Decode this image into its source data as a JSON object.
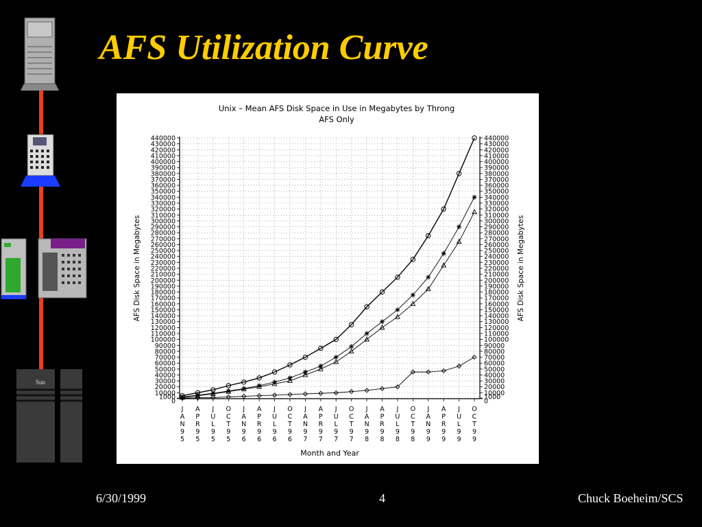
{
  "slide": {
    "title": "AFS Utilization Curve",
    "footer_date": "6/30/1999",
    "footer_page": "4",
    "footer_author": "Chuck Boeheim/SCS"
  },
  "hardware": {
    "brand_label": "Sun"
  },
  "chart_data": {
    "type": "line",
    "title": "Unix – Mean AFS Disk Space in Use in Megabytes by Throng",
    "subtitle": "AFS Only",
    "xlabel": "Month and Year",
    "ylabel": "AFS Disk Space in Megabytes",
    "ylim": [
      0,
      440000
    ],
    "y_ticks": [
      0,
      1000,
      10000,
      20000,
      30000,
      40000,
      50000,
      60000,
      70000,
      80000,
      90000,
      100000,
      110000,
      120000,
      130000,
      140000,
      150000,
      160000,
      170000,
      180000,
      190000,
      200000,
      210000,
      220000,
      230000,
      240000,
      250000,
      260000,
      270000,
      280000,
      290000,
      300000,
      310000,
      320000,
      330000,
      340000,
      350000,
      360000,
      370000,
      380000,
      390000,
      400000,
      410000,
      420000,
      430000,
      440000
    ],
    "x_ticks": [
      "JAN95",
      "APR95",
      "JUL95",
      "OCT95",
      "JAN96",
      "APR96",
      "JUL96",
      "OCT96",
      "JAN97",
      "APR97",
      "JUL97",
      "OCT97",
      "JAN98",
      "APR98",
      "JUL98",
      "OCT98",
      "JAN99",
      "APR99",
      "JUL99",
      "OCT99"
    ],
    "grid": true,
    "series": [
      {
        "marker": "circle",
        "x": [
          "JAN95",
          "APR95",
          "JUL95",
          "OCT95",
          "JAN96",
          "APR96",
          "JUL96",
          "OCT96",
          "JAN97",
          "APR97",
          "JUL97",
          "OCT97",
          "JAN98",
          "APR98",
          "JUL98",
          "OCT98",
          "JAN99",
          "APR99",
          "JUL99",
          "OCT99"
        ],
        "values": [
          5000,
          10000,
          15000,
          22000,
          28000,
          35000,
          45000,
          57000,
          70000,
          85000,
          100000,
          125000,
          155000,
          180000,
          205000,
          235000,
          275000,
          320000,
          380000,
          440000
        ]
      },
      {
        "marker": "star",
        "x": [
          "JAN95",
          "APR95",
          "JUL95",
          "OCT95",
          "JAN96",
          "APR96",
          "JUL96",
          "OCT96",
          "JAN97",
          "APR97",
          "JUL97",
          "OCT97",
          "JAN98",
          "APR98",
          "JUL98",
          "OCT98",
          "JAN99",
          "APR99",
          "JUL99",
          "OCT99"
        ],
        "values": [
          3000,
          6000,
          9000,
          13000,
          17000,
          22000,
          28000,
          35000,
          45000,
          55000,
          70000,
          88000,
          110000,
          130000,
          150000,
          175000,
          205000,
          245000,
          290000,
          340000
        ]
      },
      {
        "marker": "triangle",
        "x": [
          "JAN95",
          "APR95",
          "JUL95",
          "OCT95",
          "JAN96",
          "APR96",
          "JUL96",
          "OCT96",
          "JAN97",
          "APR97",
          "JUL97",
          "OCT97",
          "JAN98",
          "APR98",
          "JUL98",
          "OCT98",
          "JAN99",
          "APR99",
          "JUL99",
          "OCT99"
        ],
        "values": [
          2000,
          5000,
          8000,
          12000,
          16000,
          20000,
          25000,
          30000,
          40000,
          50000,
          62000,
          80000,
          100000,
          120000,
          138000,
          160000,
          185000,
          225000,
          265000,
          315000
        ]
      },
      {
        "marker": "diamond",
        "x": [
          "JAN95",
          "APR95",
          "JUL95",
          "OCT95",
          "JAN96",
          "APR96",
          "JUL96",
          "OCT96",
          "JAN97",
          "APR97",
          "JUL97",
          "OCT97",
          "JAN98",
          "APR98",
          "JUL98",
          "OCT98",
          "JAN99",
          "APR99",
          "JUL99",
          "OCT99"
        ],
        "values": [
          1000,
          1500,
          2000,
          3000,
          4000,
          5000,
          6000,
          7000,
          8000,
          9000,
          10000,
          12000,
          14000,
          17000,
          20000,
          45000,
          45000,
          47000,
          55000,
          70000
        ]
      }
    ]
  }
}
